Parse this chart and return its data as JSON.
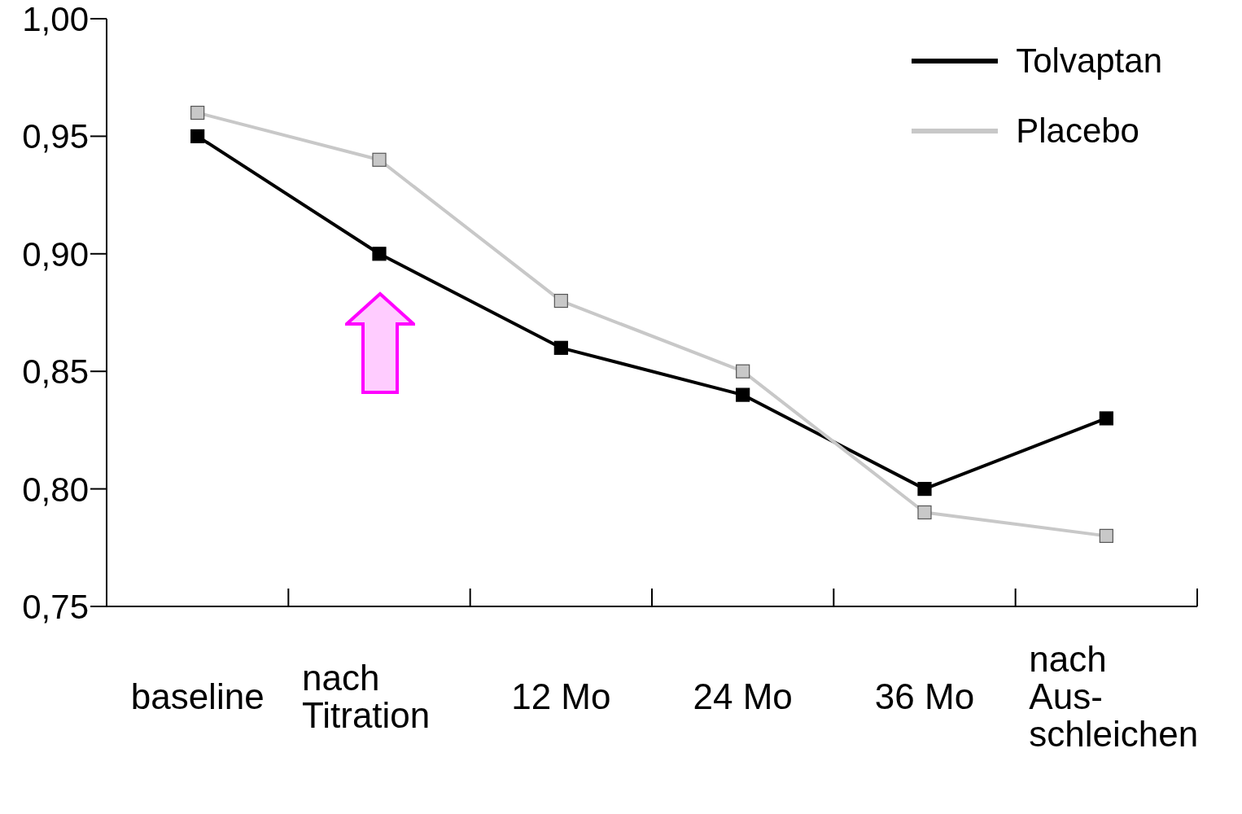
{
  "chart_data": {
    "type": "line",
    "categories": [
      "baseline",
      "nach Titration",
      "12 Mo",
      "24 Mo",
      "36 Mo",
      "nach Aus-schleichen"
    ],
    "series": [
      {
        "name": "Tolvaptan",
        "color": "#000000",
        "values": [
          0.95,
          0.9,
          0.86,
          0.84,
          0.8,
          0.83
        ]
      },
      {
        "name": "Placebo",
        "color": "#c8c8c8",
        "values": [
          0.96,
          0.94,
          0.88,
          0.85,
          0.79,
          0.78
        ]
      }
    ],
    "ylim": [
      0.75,
      1.0
    ],
    "yticks": [
      {
        "value": 0.75,
        "label": "0,75"
      },
      {
        "value": 0.8,
        "label": "0,80"
      },
      {
        "value": 0.85,
        "label": "0,85"
      },
      {
        "value": 0.9,
        "label": "0,90"
      },
      {
        "value": 0.95,
        "label": "0,95"
      },
      {
        "value": 1.0,
        "label": "1,00"
      }
    ],
    "grid": false,
    "legend": "top right",
    "marker": "square",
    "line_style": "solid"
  }
}
